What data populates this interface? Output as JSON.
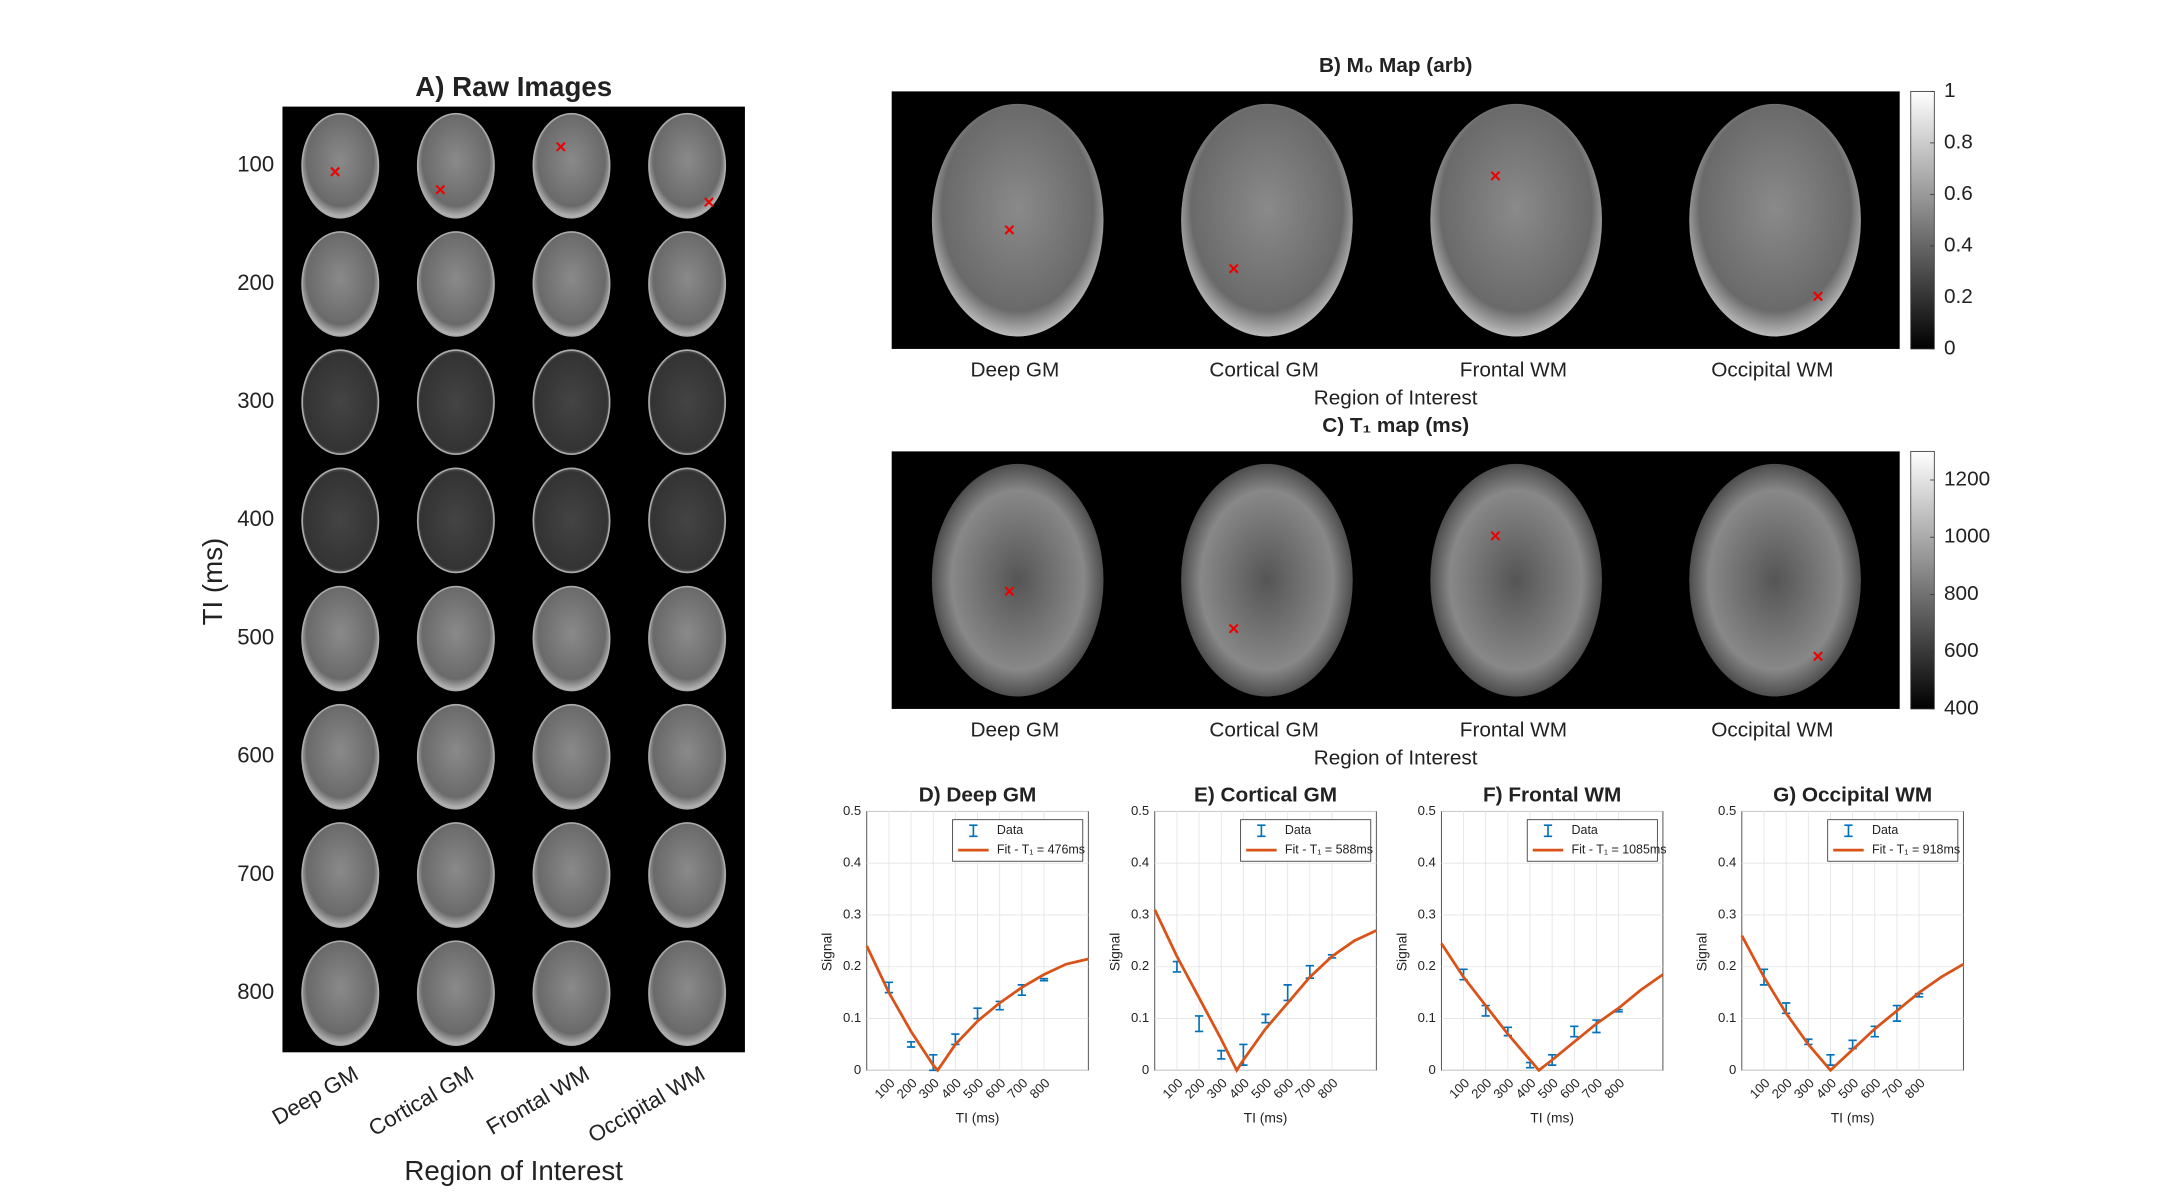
{
  "chart_data": [
    {
      "type": "image-grid",
      "title": "A) Raw Images",
      "row_labels": [
        100,
        200,
        300,
        400,
        500,
        600,
        700,
        800
      ],
      "ylabel": "TI (ms)",
      "categories": [
        "Deep GM",
        "Cortical GM",
        "Frontal WM",
        "Occipital WM"
      ],
      "xlabel": "Region of Interest"
    },
    {
      "type": "image-map",
      "title": "B) M₀ Map (arb)",
      "categories": [
        "Deep GM",
        "Cortical GM",
        "Frontal WM",
        "Occipital WM"
      ],
      "xlabel": "Region of Interest",
      "clim": [
        0,
        1
      ],
      "cticks": [
        0,
        0.2,
        0.4,
        0.6,
        0.8,
        1
      ]
    },
    {
      "type": "image-map",
      "title": "C) T₁ map (ms)",
      "categories": [
        "Deep GM",
        "Cortical GM",
        "Frontal WM",
        "Occipital WM"
      ],
      "xlabel": "Region of Interest",
      "clim": [
        400,
        1300
      ],
      "cticks": [
        400,
        600,
        800,
        1000,
        1200
      ]
    },
    {
      "type": "line",
      "title": "D) Deep GM",
      "xlabel": "TI (ms)",
      "ylabel": "Signal",
      "xlim": [
        0,
        1000
      ],
      "xticks": [
        100,
        200,
        300,
        400,
        500,
        600,
        700,
        800
      ],
      "ylim": [
        0,
        0.5
      ],
      "yticks": [
        0,
        0.1,
        0.2,
        0.3,
        0.4,
        0.5
      ],
      "grid": true,
      "legend": "top-right",
      "series": [
        {
          "name": "Data",
          "color": "#0072bd",
          "x": [
            100,
            200,
            300,
            400,
            500,
            600,
            700,
            800
          ],
          "values": [
            0.16,
            0.05,
            0.015,
            0.06,
            0.11,
            0.125,
            0.155,
            0.175
          ],
          "errors": [
            0.01,
            0.005,
            0.015,
            0.01,
            0.01,
            0.008,
            0.01,
            0.002
          ]
        },
        {
          "name": "Fit - T₁ = 476ms",
          "color": "#d95319",
          "x": [
            0,
            100,
            200,
            300,
            320,
            400,
            500,
            600,
            700,
            800,
            900,
            1000
          ],
          "values": [
            0.24,
            0.15,
            0.075,
            0.01,
            0,
            0.05,
            0.095,
            0.13,
            0.16,
            0.185,
            0.205,
            0.215
          ]
        }
      ]
    },
    {
      "type": "line",
      "title": "E) Cortical GM",
      "xlabel": "TI (ms)",
      "ylabel": "Signal",
      "xlim": [
        0,
        1000
      ],
      "xticks": [
        100,
        200,
        300,
        400,
        500,
        600,
        700,
        800
      ],
      "ylim": [
        0,
        0.5
      ],
      "yticks": [
        0,
        0.1,
        0.2,
        0.3,
        0.4,
        0.5
      ],
      "grid": true,
      "legend": "top-right",
      "series": [
        {
          "name": "Data",
          "color": "#0072bd",
          "x": [
            100,
            200,
            300,
            400,
            500,
            600,
            700,
            800
          ],
          "values": [
            0.2,
            0.09,
            0.03,
            0.03,
            0.1,
            0.15,
            0.19,
            0.22
          ],
          "errors": [
            0.01,
            0.015,
            0.008,
            0.02,
            0.008,
            0.015,
            0.012,
            0.003
          ]
        },
        {
          "name": "Fit - T₁ = 588ms",
          "color": "#d95319",
          "x": [
            0,
            100,
            200,
            300,
            370,
            400,
            500,
            600,
            700,
            800,
            900,
            1000
          ],
          "values": [
            0.31,
            0.22,
            0.14,
            0.06,
            0,
            0.02,
            0.08,
            0.13,
            0.18,
            0.22,
            0.25,
            0.27
          ]
        }
      ]
    },
    {
      "type": "line",
      "title": "F) Frontal WM",
      "xlabel": "TI (ms)",
      "ylabel": "Signal",
      "xlim": [
        0,
        1000
      ],
      "xticks": [
        100,
        200,
        300,
        400,
        500,
        600,
        700,
        800
      ],
      "ylim": [
        0,
        0.5
      ],
      "yticks": [
        0,
        0.1,
        0.2,
        0.3,
        0.4,
        0.5
      ],
      "grid": true,
      "legend": "top-right",
      "series": [
        {
          "name": "Data",
          "color": "#0072bd",
          "x": [
            100,
            200,
            300,
            400,
            500,
            600,
            700,
            800
          ],
          "values": [
            0.185,
            0.115,
            0.075,
            0.01,
            0.02,
            0.075,
            0.085,
            0.115
          ],
          "errors": [
            0.01,
            0.01,
            0.008,
            0.005,
            0.01,
            0.01,
            0.012,
            0.002
          ]
        },
        {
          "name": "Fit - T₁ = 1085ms",
          "color": "#d95319",
          "x": [
            0,
            100,
            200,
            300,
            400,
            440,
            500,
            600,
            700,
            800,
            900,
            1000
          ],
          "values": [
            0.245,
            0.18,
            0.125,
            0.07,
            0.02,
            0,
            0.02,
            0.055,
            0.09,
            0.12,
            0.155,
            0.185
          ]
        }
      ]
    },
    {
      "type": "line",
      "title": "G) Occipital WM",
      "xlabel": "TI (ms)",
      "ylabel": "Signal",
      "xlim": [
        0,
        1000
      ],
      "xticks": [
        100,
        200,
        300,
        400,
        500,
        600,
        700,
        800
      ],
      "ylim": [
        0,
        0.5
      ],
      "yticks": [
        0,
        0.1,
        0.2,
        0.3,
        0.4,
        0.5
      ],
      "grid": true,
      "legend": "top-right",
      "series": [
        {
          "name": "Data",
          "color": "#0072bd",
          "x": [
            100,
            200,
            300,
            400,
            500,
            600,
            700,
            800
          ],
          "values": [
            0.18,
            0.12,
            0.055,
            0.02,
            0.05,
            0.075,
            0.11,
            0.145
          ],
          "errors": [
            0.015,
            0.01,
            0.005,
            0.01,
            0.008,
            0.01,
            0.015,
            0.003
          ]
        },
        {
          "name": "Fit - T₁ = 918ms",
          "color": "#d95319",
          "x": [
            0,
            100,
            200,
            300,
            400,
            500,
            600,
            700,
            800,
            900,
            1000
          ],
          "values": [
            0.26,
            0.18,
            0.11,
            0.05,
            0,
            0.04,
            0.08,
            0.115,
            0.15,
            0.18,
            0.205
          ]
        }
      ]
    }
  ]
}
